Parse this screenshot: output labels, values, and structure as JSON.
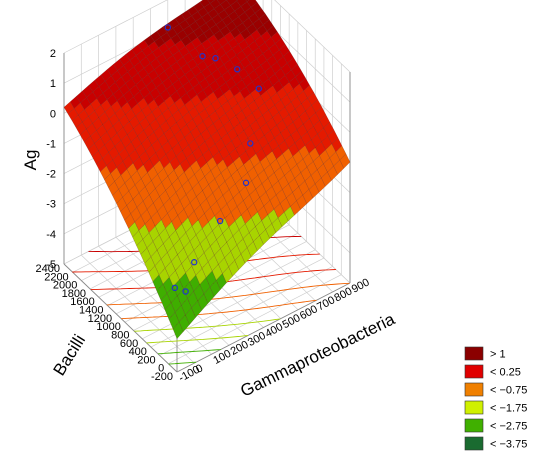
{
  "chart_data": {
    "type": "surface3d",
    "zlabel": "Ag",
    "xlabel": "Gammaproteobacteria",
    "ylabel": "Bacilli",
    "x_ticks": [
      "-100",
      "0",
      "100",
      "200",
      "300",
      "400",
      "500",
      "600",
      "700",
      "800",
      "900"
    ],
    "y_ticks": [
      "-200",
      "0",
      "200",
      "400",
      "600",
      "800",
      "1000",
      "1200",
      "1400",
      "1600",
      "1800",
      "2000",
      "2200",
      "2400"
    ],
    "z_ticks": [
      "-5",
      "-4",
      "-3",
      "-2",
      "-1",
      "0",
      "1",
      "2"
    ],
    "xlim": [
      -100,
      900
    ],
    "ylim": [
      -200,
      2400
    ],
    "zlim": [
      -5,
      2
    ],
    "grid": true,
    "legend_position": "bottom-right",
    "legend": [
      {
        "label": "> 1",
        "color": "#8b0000"
      },
      {
        "label": "< 0.25",
        "color": "#e00000"
      },
      {
        "label": "< −0.75",
        "color": "#f08000"
      },
      {
        "label": "< −1.75",
        "color": "#d0f000"
      },
      {
        "label": "< −2.75",
        "color": "#40b000"
      },
      {
        "label": "< −3.75",
        "color": "#1a6b30"
      }
    ],
    "observed_points": [
      {
        "x": 450,
        "y": 2200,
        "z": 1.5
      },
      {
        "x": 550,
        "y": 1800,
        "z": 0.8
      },
      {
        "x": 650,
        "y": 1900,
        "z": 0.3
      },
      {
        "x": 700,
        "y": 1600,
        "z": 0.2
      },
      {
        "x": 800,
        "y": 1500,
        "z": -0.6
      },
      {
        "x": 600,
        "y": 900,
        "z": -1.0
      },
      {
        "x": 500,
        "y": 600,
        "z": -1.6
      },
      {
        "x": 300,
        "y": 400,
        "z": -2.0
      },
      {
        "x": 100,
        "y": 200,
        "z": -2.5
      },
      {
        "x": 0,
        "y": 0,
        "z": -2.9
      },
      {
        "x": -50,
        "y": 50,
        "z": -2.7
      }
    ]
  }
}
